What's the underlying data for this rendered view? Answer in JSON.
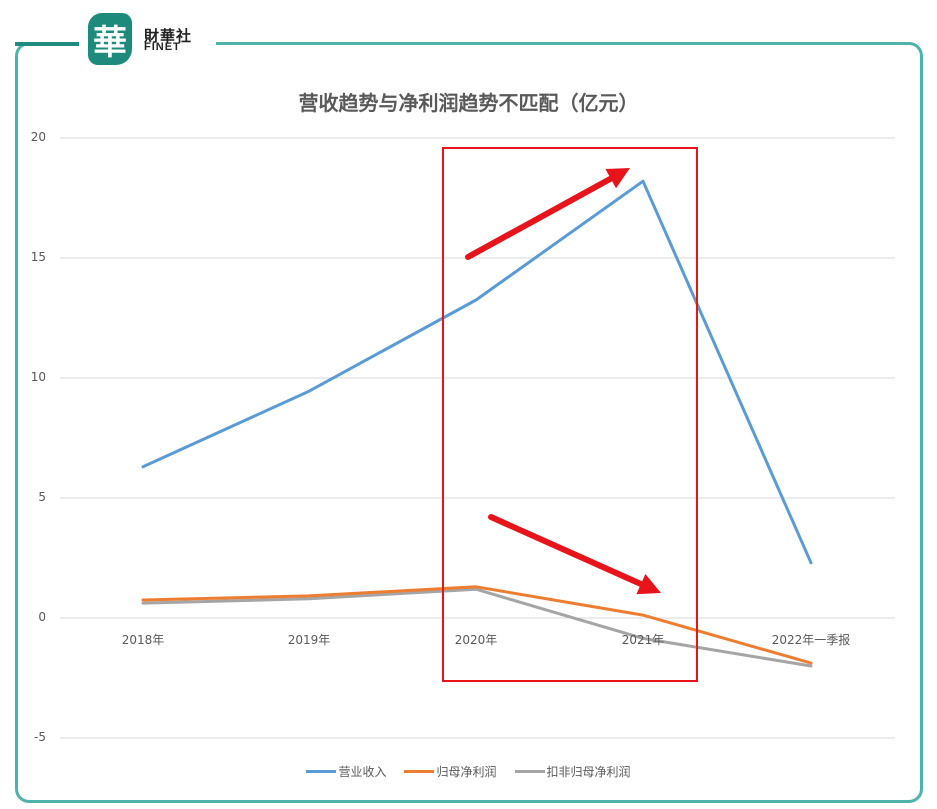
{
  "branding": {
    "logo_glyph": "華",
    "name_cn": "財華社",
    "name_en": "FINET",
    "frame_color": "#4fb3ab",
    "logo_color": "#1e8a7c"
  },
  "chart_data": {
    "type": "line",
    "title": "营收趋势与净利润趋势不匹配（亿元）",
    "xlabel": "",
    "ylabel": "",
    "categories": [
      "2018年",
      "2019年",
      "2020年",
      "2021年",
      "2022年一季报"
    ],
    "series": [
      {
        "name": "营业收入",
        "color": "#5b9bd5",
        "values": [
          6.3,
          9.45,
          13.25,
          18.2,
          2.3
        ]
      },
      {
        "name": "归母净利润",
        "color": "#ed7d31",
        "values": [
          0.75,
          0.92,
          1.3,
          0.12,
          -1.88
        ]
      },
      {
        "name": "扣非归母净利润",
        "color": "#a5a5a5",
        "values": [
          0.62,
          0.8,
          1.2,
          -0.85,
          -2.0
        ]
      }
    ],
    "ylim": [
      -5,
      20
    ],
    "yticks": [
      "20",
      "15",
      "10",
      "5",
      "0",
      "-5"
    ],
    "grid": true,
    "legend_position": "bottom",
    "annotations": [
      {
        "type": "rectangle",
        "color": "#e8141b",
        "around": [
          "2020年",
          "2021年"
        ]
      },
      {
        "type": "arrow",
        "color": "#e8141b",
        "direction": "up-right",
        "near": "营业收入 2020-2021"
      },
      {
        "type": "arrow",
        "color": "#e8141b",
        "direction": "down-right",
        "near": "归母净利润 2020-2021"
      }
    ]
  }
}
